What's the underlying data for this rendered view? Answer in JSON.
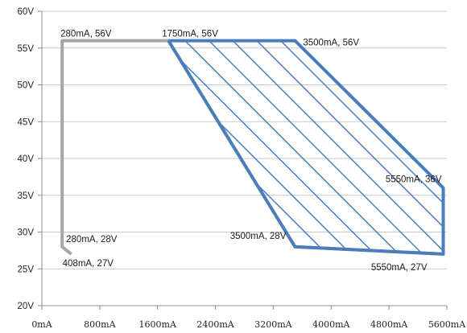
{
  "chart_data": {
    "type": "area",
    "xlim": [
      0,
      5600
    ],
    "ylim": [
      20,
      60
    ],
    "x_ticks": [
      0,
      800,
      1600,
      2400,
      3200,
      4000,
      4800,
      5600
    ],
    "x_tick_labels": [
      "0mA",
      "800mA",
      "1600mA",
      "2400mA",
      "3200mA",
      "4000mA",
      "4800mA",
      "5600mA"
    ],
    "y_ticks": [
      20,
      25,
      30,
      35,
      40,
      45,
      50,
      55,
      60
    ],
    "y_tick_labels": [
      "20V",
      "25V",
      "30V",
      "35V",
      "40V",
      "45V",
      "50V",
      "55V",
      "60V"
    ],
    "grid": "horizontal",
    "series": [
      {
        "color": "#a6a6a6",
        "fill": "none",
        "points": [
          [
            408,
            27
          ],
          [
            280,
            28
          ],
          [
            280,
            56
          ],
          [
            1750,
            56
          ],
          [
            3500,
            28
          ],
          [
            5550,
            27
          ]
        ]
      },
      {
        "color": "#4a7ebb",
        "fill": "hatch",
        "points": [
          [
            1750,
            56
          ],
          [
            3500,
            56
          ],
          [
            5550,
            36
          ],
          [
            5550,
            27
          ],
          [
            3500,
            28
          ],
          [
            1750,
            56
          ]
        ]
      }
    ],
    "annotations": [
      {
        "text": "280mA, 56V",
        "x": 280,
        "y": 56
      },
      {
        "text": "1750mA, 56V",
        "x": 1750,
        "y": 56
      },
      {
        "text": "3500mA, 56V",
        "x": 3500,
        "y": 56
      },
      {
        "text": "5550mA, 36V",
        "x": 5550,
        "y": 36
      },
      {
        "text": "280mA, 28V",
        "x": 280,
        "y": 28
      },
      {
        "text": "3500mA, 28V",
        "x": 3500,
        "y": 28
      },
      {
        "text": "408mA, 27V",
        "x": 408,
        "y": 27
      },
      {
        "text": "5550mA, 27V",
        "x": 5550,
        "y": 27
      }
    ]
  }
}
